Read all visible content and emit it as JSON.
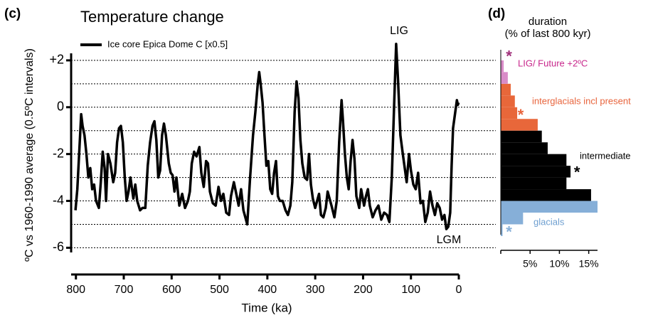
{
  "chart_data": [
    {
      "type": "line",
      "panel_label": "(c)",
      "title": "Temperature change",
      "x_label": "Time (ka)",
      "y_label": "ºC vs 1960-1990 average (0.5ºC intervals)",
      "xlim": [
        810,
        0
      ],
      "xticks": [
        800,
        700,
        600,
        500,
        400,
        300,
        200,
        100,
        0
      ],
      "ylim": [
        -6.2,
        2.3
      ],
      "yticks": [
        {
          "value": 2,
          "label": "+2"
        },
        0,
        -2,
        -4,
        -6
      ],
      "minor_yticks": [
        1,
        -1,
        -3,
        -5
      ],
      "grid": true,
      "legend": "top-left",
      "annotations": [
        "LIG",
        "LGM"
      ],
      "x": [
        801,
        797,
        792,
        789,
        786,
        782,
        778,
        774,
        770,
        766,
        762,
        758,
        752,
        748,
        744,
        740,
        737,
        733,
        728,
        722,
        718,
        714,
        710,
        706,
        702,
        698,
        694,
        690,
        686,
        680,
        676,
        672,
        666,
        661,
        655,
        650,
        645,
        640,
        636,
        632,
        628,
        624,
        620,
        616,
        612,
        606,
        602,
        598,
        594,
        590,
        584,
        578,
        572,
        566,
        562,
        558,
        553,
        548,
        542,
        538,
        533,
        528,
        524,
        520,
        514,
        508,
        502,
        497,
        492,
        486,
        480,
        476,
        470,
        466,
        460,
        455,
        450,
        442,
        436,
        430,
        425,
        420,
        417,
        414,
        410,
        406,
        402,
        398,
        394,
        390,
        386,
        382,
        378,
        374,
        368,
        362,
        357,
        352,
        348,
        343,
        339,
        335,
        331,
        327,
        322,
        317,
        313,
        309,
        305,
        300,
        296,
        292,
        288,
        283,
        278,
        274,
        270,
        266,
        260,
        255,
        250,
        245,
        242,
        238,
        234,
        230,
        226,
        222,
        218,
        214,
        208,
        204,
        198,
        194,
        190,
        186,
        180,
        174,
        168,
        162,
        156,
        150,
        145,
        140,
        135,
        131,
        127,
        122,
        117,
        113,
        109,
        104,
        100,
        95,
        90,
        85,
        80,
        75,
        70,
        65,
        60,
        55,
        50,
        45,
        40,
        35,
        30,
        26,
        22,
        18,
        15,
        12,
        8,
        4,
        2,
        0.5
      ],
      "series": [
        {
          "name": "Ice core Epica Dome C [x0.5]",
          "color": "#000000",
          "values": [
            -4.4,
            -3.5,
            -1.5,
            -0.3,
            -0.8,
            -1.2,
            -2.0,
            -3.0,
            -2.6,
            -3.5,
            -3.3,
            -4.0,
            -4.3,
            -3.2,
            -1.9,
            -2.6,
            -4.0,
            -2.0,
            -2.4,
            -3.2,
            -2.8,
            -1.5,
            -0.9,
            -0.8,
            -1.5,
            -3.0,
            -4.0,
            -3.6,
            -3.0,
            -3.9,
            -3.3,
            -4.0,
            -4.4,
            -4.3,
            -4.3,
            -2.5,
            -1.5,
            -0.8,
            -0.6,
            -1.4,
            -3.0,
            -2.7,
            -1.2,
            -0.7,
            -1.2,
            -2.4,
            -2.8,
            -2.9,
            -3.6,
            -3.0,
            -4.2,
            -3.7,
            -4.3,
            -4.0,
            -3.6,
            -2.4,
            -1.9,
            -2.1,
            -1.7,
            -2.8,
            -3.4,
            -2.3,
            -2.4,
            -3.6,
            -4.1,
            -4.2,
            -3.4,
            -4.0,
            -3.7,
            -4.5,
            -4.6,
            -3.8,
            -3.2,
            -3.6,
            -4.2,
            -3.5,
            -4.4,
            -5.0,
            -3.0,
            -1.2,
            -0.2,
            1.0,
            1.5,
            1.0,
            0.2,
            -1.2,
            -2.5,
            -2.3,
            -3.5,
            -3.7,
            -2.8,
            -2.3,
            -3.8,
            -4.0,
            -4.0,
            -4.4,
            -4.6,
            -4.2,
            -3.2,
            -0.2,
            1.1,
            0.4,
            -1.4,
            -2.4,
            -3.0,
            -3.1,
            -2.0,
            -3.3,
            -3.9,
            -4.3,
            -4.0,
            -3.7,
            -4.6,
            -4.7,
            -4.3,
            -3.6,
            -3.9,
            -4.2,
            -4.7,
            -4.0,
            -1.5,
            0.3,
            -0.6,
            -2.0,
            -3.0,
            -3.5,
            -2.3,
            -1.4,
            -2.2,
            -3.8,
            -4.3,
            -3.5,
            -4.2,
            -3.8,
            -3.5,
            -4.2,
            -4.7,
            -4.4,
            -4.2,
            -4.8,
            -4.5,
            -4.6,
            -4.9,
            -3.0,
            0.2,
            2.7,
            1.2,
            -1.2,
            -2.0,
            -2.6,
            -3.2,
            -2.0,
            -2.7,
            -3.3,
            -3.5,
            -2.8,
            -4.1,
            -4.0,
            -4.9,
            -4.5,
            -3.6,
            -4.2,
            -4.6,
            -4.1,
            -4.3,
            -4.8,
            -4.6,
            -5.2,
            -5.1,
            -4.5,
            -2.5,
            -0.9,
            -0.3,
            0.3,
            0.1,
            0.2
          ]
        }
      ]
    },
    {
      "type": "histogram",
      "orientation": "horizontal",
      "panel_label": "(d)",
      "title": "duration",
      "subtitle": "(% of last 800 kyr)",
      "ylim": [
        -6.2,
        2.3
      ],
      "xlim": [
        0,
        16.5
      ],
      "xticks": [
        {
          "value": 5,
          "label": "5%"
        },
        {
          "value": 10,
          "label": "10%"
        },
        {
          "value": 15,
          "label": "15%"
        }
      ],
      "bins": [
        -5.5,
        -5,
        -4.5,
        -4,
        -3.5,
        -3,
        -2.5,
        -2,
        -1.5,
        -1,
        -0.5,
        0,
        0.5,
        1,
        1.5,
        2
      ],
      "values": [
        0.3,
        3.8,
        16.5,
        15.4,
        11.2,
        11.9,
        11.2,
        8.0,
        7.0,
        6.3,
        2.8,
        2.4,
        1.7,
        1.2,
        0.5
      ],
      "bar_colors": [
        "#86afd8",
        "#86afd8",
        "#86afd8",
        "#000000",
        "#000000",
        "#000000",
        "#000000",
        "#000000",
        "#000000",
        "#e8673a",
        "#e8673a",
        "#e8673a",
        "#e8673a",
        "#d98cc8",
        "#d98cc8"
      ],
      "groups": [
        {
          "name": "LIG/ Future +2ºC",
          "color": "#c8288c",
          "marker": "*",
          "marker_color": "#a0307a",
          "marker_x": 1.4,
          "marker_y": 2.25
        },
        {
          "name": "interglacials incl present",
          "color": "#e8643c",
          "marker": "*",
          "marker_color": "#e8643c",
          "marker_x": 3.4,
          "marker_y": -0.25
        },
        {
          "name": "intermediate",
          "color": "#000000",
          "marker": "*",
          "marker_color": "#000000",
          "marker_x": 13.0,
          "marker_y": -2.7
        },
        {
          "name": "glacials",
          "color": "#6e9fd0",
          "marker": "*",
          "marker_color": "#86afd8",
          "marker_x": 1.4,
          "marker_y": -5.25
        }
      ]
    }
  ]
}
